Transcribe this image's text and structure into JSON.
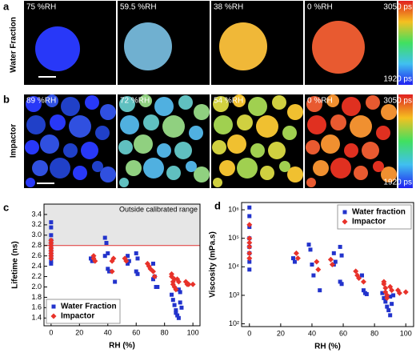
{
  "panel_a": {
    "label": "a",
    "row_title": "Water Fraction",
    "images": [
      "75 %RH",
      "59.5 %RH",
      "38 %RH",
      "0 %RH"
    ],
    "colorbar": {
      "max": "3050 ps",
      "min": "1920 ps"
    }
  },
  "panel_b": {
    "label": "b",
    "row_title": "Impactor",
    "images": [
      "89 %RH",
      "72 %RH",
      "54 %RH",
      "0 %RH"
    ],
    "colorbar": {
      "max": "3050 ps",
      "min": "1920 ps"
    }
  },
  "chart_data": [
    {
      "panel": "c",
      "type": "scatter",
      "xlabel": "RH (%)",
      "ylabel": "Lifetime (ns)",
      "annotation": "Outside calibrated range",
      "threshold": 2.8,
      "threshold_color": "#e03030",
      "xlim": [
        -5,
        105
      ],
      "ylim": [
        1.25,
        3.6
      ],
      "log_y": false,
      "xticks": [
        0,
        20,
        40,
        60,
        80,
        100
      ],
      "yticks": [
        1.4,
        1.6,
        1.8,
        {
          "value": 2,
          "label": "2.0"
        },
        2.2,
        2.4,
        2.6,
        2.8,
        {
          "value": 3,
          "label": "3.0"
        },
        3.2,
        3.4
      ],
      "legend": "lower left",
      "series": [
        {
          "name": "Water Fraction",
          "color": "#2233cc",
          "marker": "square",
          "x": [
            0,
            0,
            0,
            0,
            0,
            0,
            0,
            0,
            0,
            28,
            29,
            38,
            39,
            40,
            38,
            40,
            41,
            45,
            54,
            55,
            54,
            60,
            61,
            60,
            61,
            72,
            73,
            72,
            74,
            75,
            85,
            86,
            87,
            88,
            88,
            89,
            90,
            91,
            90,
            91,
            92
          ],
          "values": [
            3.25,
            3.15,
            3.0,
            2.9,
            2.8,
            2.7,
            2.6,
            2.5,
            2.45,
            2.55,
            2.5,
            2.95,
            2.85,
            2.65,
            2.6,
            2.35,
            2.3,
            2.1,
            2.6,
            2.5,
            2.45,
            2.65,
            2.55,
            2.3,
            2.25,
            2.45,
            2.2,
            2.15,
            2.0,
            2.0,
            1.85,
            1.75,
            1.65,
            1.55,
            1.5,
            1.45,
            1.4,
            1.9,
            1.95,
            1.7,
            1.6
          ]
        },
        {
          "name": "Impactor",
          "color": "#e8322a",
          "marker": "diamond",
          "x": [
            0,
            0,
            0,
            0,
            0,
            0,
            0,
            0,
            30,
            31,
            30,
            43,
            44,
            43,
            52,
            53,
            68,
            69,
            70,
            72,
            73,
            85,
            86,
            85,
            87,
            86,
            87,
            88,
            89,
            90,
            95,
            96,
            97,
            100
          ],
          "values": [
            2.9,
            2.85,
            2.8,
            2.75,
            2.7,
            2.65,
            2.6,
            2.55,
            2.55,
            2.5,
            2.6,
            2.5,
            2.55,
            2.3,
            2.55,
            2.5,
            2.45,
            2.4,
            2.35,
            2.3,
            2.2,
            2.2,
            2.1,
            2.25,
            2.15,
            2.05,
            2.0,
            1.95,
            2.15,
            2.1,
            2.1,
            2.05,
            2.05,
            2.05
          ]
        }
      ]
    },
    {
      "panel": "d",
      "type": "scatter",
      "xlabel": "RH (%)",
      "ylabel": "Viscosity (mPa.s)",
      "xlim": [
        -5,
        105
      ],
      "ylim": [
        80,
        1800000
      ],
      "log_y": true,
      "xticks": [
        0,
        20,
        40,
        60,
        80,
        100
      ],
      "yticks": [
        {
          "value": 100,
          "label": "10²"
        },
        {
          "value": 1000,
          "label": "10³"
        },
        {
          "value": 10000,
          "label": "10⁴"
        },
        {
          "value": 100000,
          "label": "10⁵"
        },
        {
          "value": 1000000,
          "label": "10⁶"
        }
      ],
      "legend": "upper right",
      "series": [
        {
          "name": "Water fraction",
          "color": "#2233cc",
          "marker": "square",
          "x": [
            0,
            0,
            0,
            0,
            0,
            0,
            0,
            0,
            28,
            29,
            38,
            39,
            40,
            41,
            45,
            54,
            55,
            54,
            58,
            59,
            58,
            59,
            72,
            73,
            74,
            75,
            85,
            86,
            87,
            88,
            89,
            90,
            91,
            90,
            92
          ],
          "values": [
            1200000,
            600000,
            250000,
            100000,
            50000,
            30000,
            15000,
            8000,
            20000,
            15000,
            60000,
            40000,
            12000,
            5000,
            1500,
            30000,
            15000,
            12000,
            50000,
            25000,
            3000,
            2500,
            5000,
            1500,
            1200,
            1100,
            1200,
            800,
            600,
            400,
            300,
            200,
            500,
            900,
            1000
          ]
        },
        {
          "name": "Impactor",
          "color": "#e8322a",
          "marker": "diamond",
          "x": [
            0,
            0,
            0,
            0,
            0,
            0,
            30,
            31,
            43,
            44,
            52,
            53,
            68,
            69,
            70,
            73,
            86,
            86,
            87,
            87,
            88,
            88,
            90,
            91,
            95,
            96,
            100
          ],
          "values": [
            300000,
            100000,
            70000,
            50000,
            30000,
            20000,
            30000,
            20000,
            15000,
            8000,
            18000,
            12000,
            7000,
            5000,
            4000,
            3000,
            3000,
            2500,
            1800,
            1300,
            1000,
            800,
            2000,
            1500,
            1500,
            1200,
            1300
          ]
        }
      ]
    }
  ]
}
